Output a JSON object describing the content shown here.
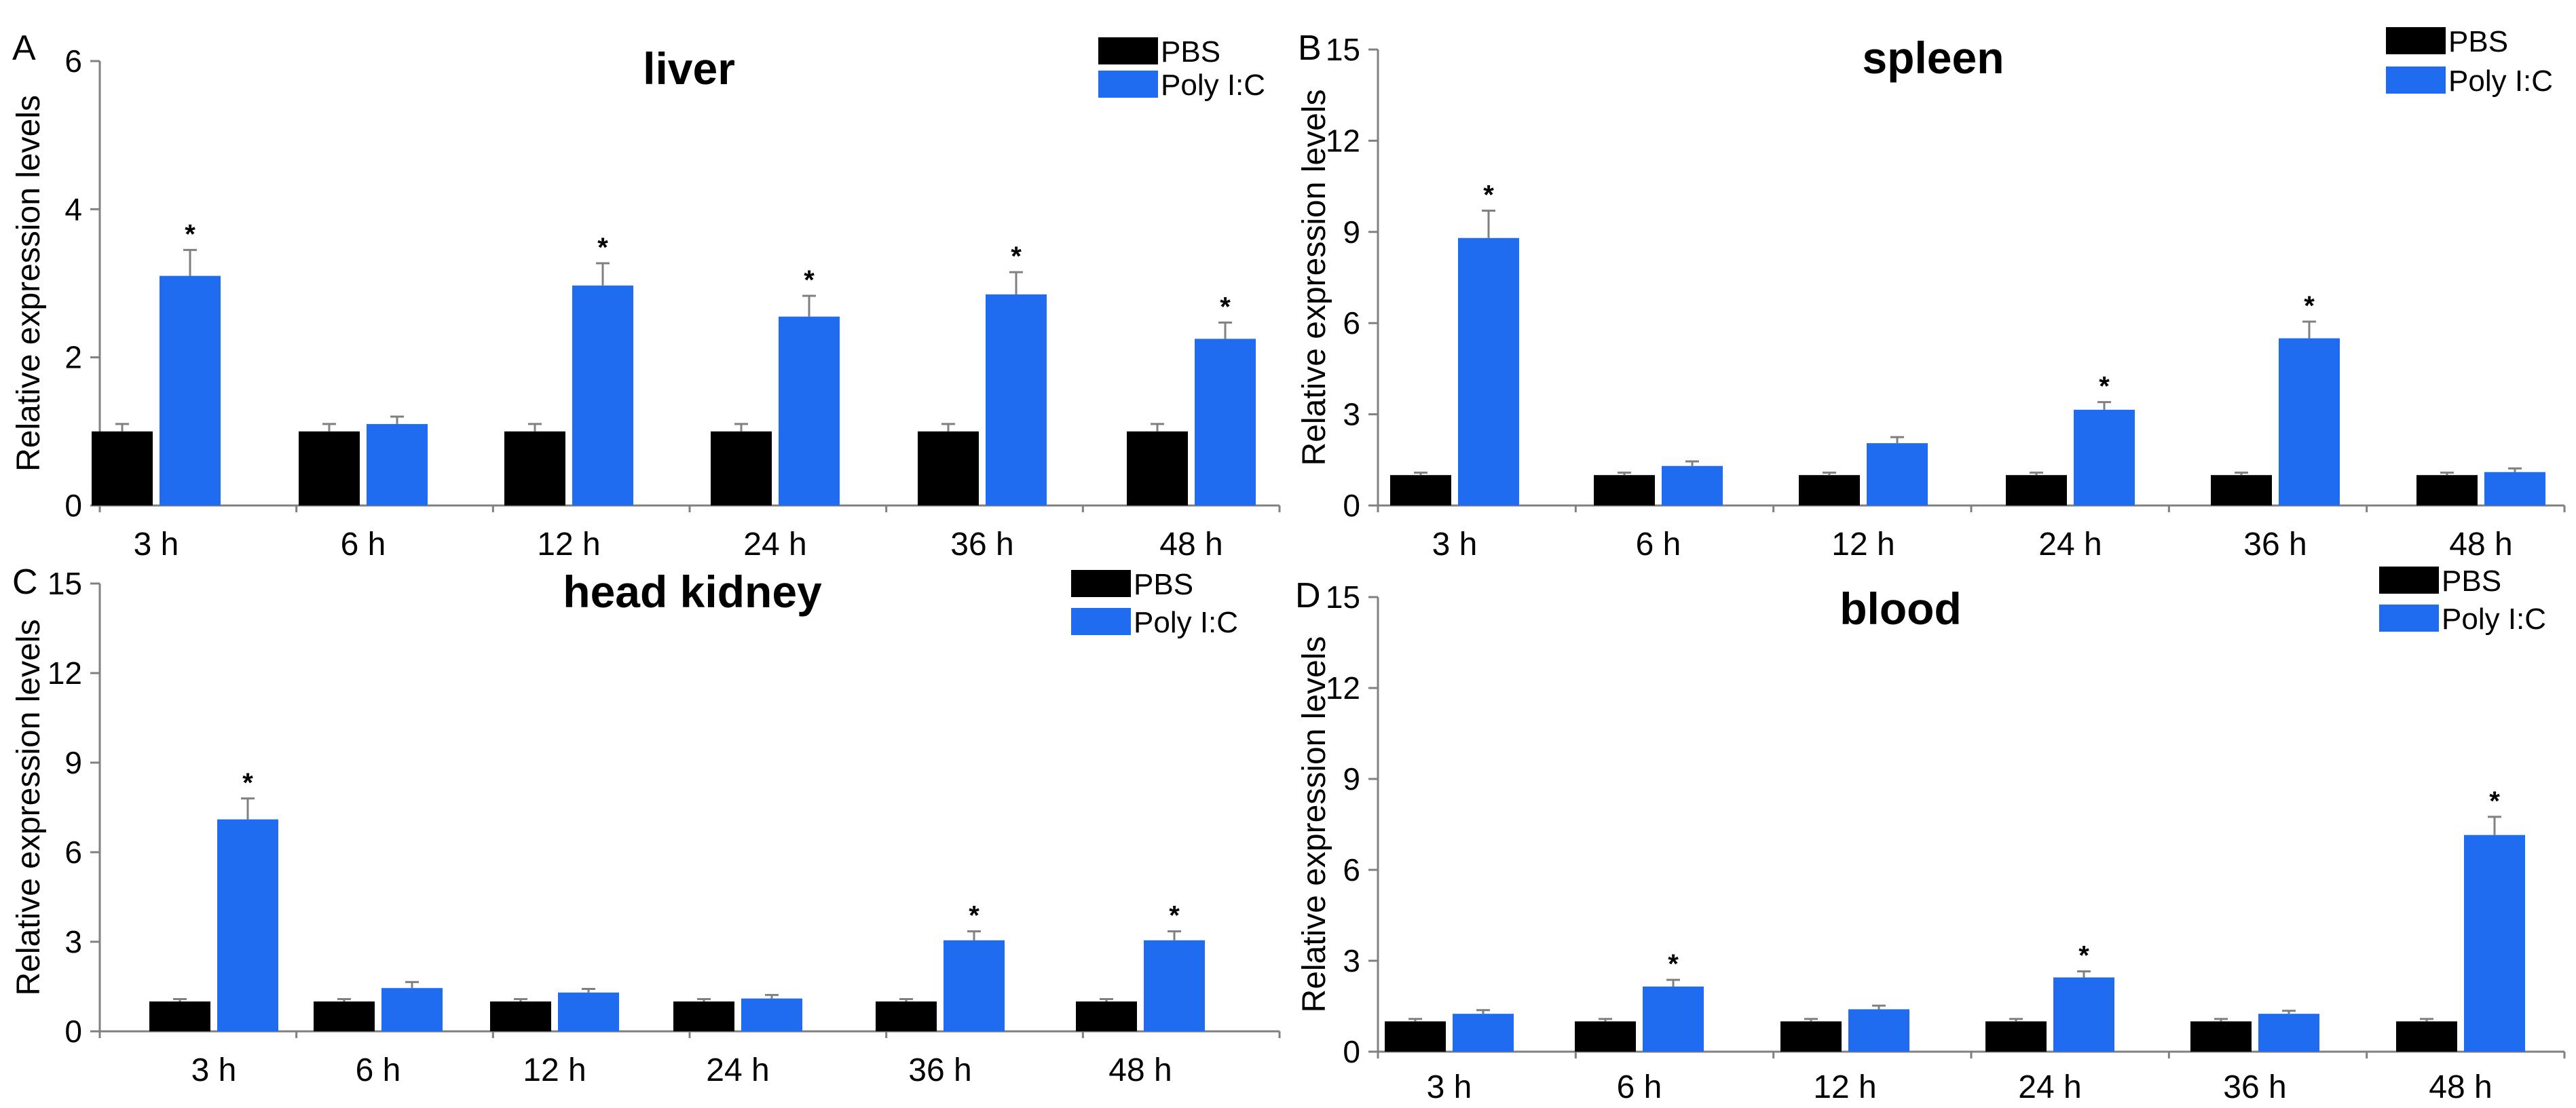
{
  "figure": {
    "colors": {
      "pbs": "#000000",
      "polyic": "#1f6cf0",
      "axis": "#808080",
      "text": "#000000"
    }
  },
  "chart_data": [
    {
      "type": "bar",
      "panel": "A",
      "title": "liver",
      "xlabel": "",
      "ylabel": "Relative expression levels",
      "ylim": [
        0,
        6
      ],
      "yticks": [
        0,
        2,
        4,
        6
      ],
      "categories": [
        "3 h",
        "6 h",
        "12 h",
        "24 h",
        "36 h",
        "48 h"
      ],
      "series": [
        {
          "name": "PBS",
          "values": [
            1,
            1,
            1,
            1,
            1,
            1
          ],
          "errors": [
            0.1,
            0.1,
            0.1,
            0.1,
            0.1,
            0.1
          ]
        },
        {
          "name": "Poly I:C",
          "values": [
            3.1,
            1.1,
            2.97,
            2.55,
            2.85,
            2.25
          ],
          "errors": [
            0.35,
            0.1,
            0.3,
            0.28,
            0.3,
            0.22
          ]
        }
      ],
      "significance": [
        "*",
        "",
        "*",
        "*",
        "*",
        "*"
      ],
      "legend": "top-right"
    },
    {
      "type": "bar",
      "panel": "B",
      "title": "spleen",
      "xlabel": "",
      "ylabel": "Relative expression levels",
      "ylim": [
        0,
        15
      ],
      "yticks": [
        0,
        3,
        6,
        9,
        12,
        15
      ],
      "categories": [
        "3 h",
        "6 h",
        "12 h",
        "24 h",
        "36 h",
        "48 h"
      ],
      "series": [
        {
          "name": "PBS",
          "values": [
            1,
            1,
            1,
            1,
            1,
            1
          ],
          "errors": [
            0.08,
            0.08,
            0.08,
            0.08,
            0.08,
            0.08
          ]
        },
        {
          "name": "Poly I:C",
          "values": [
            8.8,
            1.3,
            2.05,
            3.15,
            5.5,
            1.1
          ],
          "errors": [
            0.9,
            0.15,
            0.2,
            0.25,
            0.55,
            0.12
          ]
        }
      ],
      "significance": [
        "*",
        "",
        "",
        "*",
        "*",
        ""
      ],
      "legend": "top-right"
    },
    {
      "type": "bar",
      "panel": "C",
      "title": "head kidney",
      "xlabel": "",
      "ylabel": "Relative expression levels",
      "ylim": [
        0,
        15
      ],
      "yticks": [
        0,
        3,
        6,
        9,
        12,
        15
      ],
      "categories": [
        "3 h",
        "6 h",
        "12 h",
        "24 h",
        "36 h",
        "48 h"
      ],
      "series": [
        {
          "name": "PBS",
          "values": [
            1,
            1,
            1,
            1,
            1,
            1
          ],
          "errors": [
            0.08,
            0.08,
            0.08,
            0.08,
            0.08,
            0.08
          ]
        },
        {
          "name": "Poly I:C",
          "values": [
            7.1,
            1.45,
            1.3,
            1.1,
            3.05,
            3.05
          ],
          "errors": [
            0.7,
            0.2,
            0.12,
            0.12,
            0.3,
            0.3
          ]
        }
      ],
      "significance": [
        "*",
        "",
        "",
        "",
        "*",
        "*"
      ],
      "legend": "top-right"
    },
    {
      "type": "bar",
      "panel": "D",
      "title": "blood",
      "xlabel": "",
      "ylabel": "Relative expression levels",
      "ylim": [
        0,
        15
      ],
      "yticks": [
        0,
        3,
        6,
        9,
        12,
        15
      ],
      "categories": [
        "3 h",
        "6 h",
        "12 h",
        "24 h",
        "36 h",
        "48 h"
      ],
      "series": [
        {
          "name": "PBS",
          "values": [
            1,
            1,
            1,
            1,
            1,
            1
          ],
          "errors": [
            0.08,
            0.08,
            0.08,
            0.08,
            0.08,
            0.08
          ]
        },
        {
          "name": "Poly I:C",
          "values": [
            1.25,
            2.15,
            1.4,
            2.45,
            1.25,
            7.15
          ],
          "errors": [
            0.12,
            0.22,
            0.12,
            0.2,
            0.1,
            0.6
          ]
        }
      ],
      "significance": [
        "",
        "*",
        "",
        "*",
        "",
        "*"
      ],
      "legend": "top-right"
    }
  ]
}
